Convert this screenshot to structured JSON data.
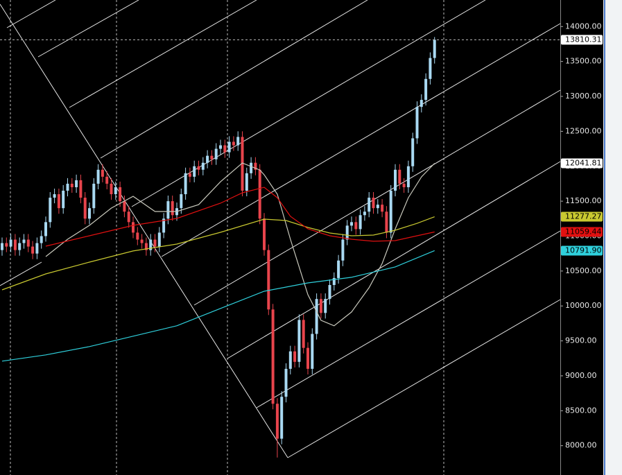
{
  "chart_data": {
    "type": "candlestick",
    "ylim": [
      7580,
      14380
    ],
    "yticks": [
      {
        "value": 8000,
        "label": "8000.00"
      },
      {
        "value": 8500,
        "label": "8500.00"
      },
      {
        "value": 9000,
        "label": "9000.00"
      },
      {
        "value": 9500,
        "label": "9500.00"
      },
      {
        "value": 10000,
        "label": "10000.00"
      },
      {
        "value": 10500,
        "label": "10500.00"
      },
      {
        "value": 11000,
        "label": "11000.00"
      },
      {
        "value": 11500,
        "label": "11500.00"
      },
      {
        "value": 12000,
        "label": "12000.00"
      },
      {
        "value": 12500,
        "label": "12500.00"
      },
      {
        "value": 13000,
        "label": "13000.00"
      },
      {
        "value": 13500,
        "label": "13500.00"
      },
      {
        "value": 14000,
        "label": "14000.00"
      }
    ],
    "up_color": "#a9d9f2",
    "down_color": "#e8444c",
    "open": [
      10800,
      10900,
      10850,
      10950,
      10800,
      10900,
      10950,
      10850,
      10750,
      10900,
      11000,
      11200,
      11550,
      11600,
      11400,
      11650,
      11750,
      11700,
      11800,
      11550,
      11250,
      11400,
      11750,
      11950,
      11850,
      11750,
      11600,
      11700,
      11500,
      11350,
      11200,
      11050,
      10950,
      10900,
      10800,
      10950,
      10850,
      11050,
      11250,
      11500,
      11300,
      11400,
      11600,
      11900,
      11850,
      12000,
      11950,
      12050,
      12150,
      12100,
      12250,
      12300,
      12200,
      12350,
      12300,
      12420,
      11650,
      11900,
      12050,
      11950,
      11250,
      10800,
      9950,
      8600,
      8100,
      8700,
      9100,
      9350,
      9200,
      9800,
      9400,
      9100,
      9600,
      10100,
      9900,
      10100,
      10300,
      10400,
      10650,
      10950,
      11150,
      11200,
      11100,
      11300,
      11350,
      11550,
      11400,
      11450,
      11350,
      11050,
      11650,
      11950,
      11750,
      11700,
      12000,
      12400,
      12850,
      12950,
      13250,
      13550
    ],
    "high": [
      10980,
      10980,
      11030,
      11030,
      10980,
      11030,
      11030,
      10930,
      10980,
      11080,
      11280,
      11630,
      11680,
      11680,
      11730,
      11830,
      11830,
      11880,
      11880,
      11630,
      11480,
      11830,
      12030,
      12030,
      11930,
      11830,
      11780,
      11780,
      11580,
      11430,
      11280,
      11130,
      11030,
      10980,
      11030,
      11030,
      11130,
      11330,
      11580,
      11580,
      11480,
      11680,
      11980,
      11980,
      12080,
      12080,
      12130,
      12230,
      12230,
      12330,
      12380,
      12380,
      12430,
      12430,
      12500,
      12500,
      11980,
      12130,
      12130,
      12030,
      11330,
      10880,
      10030,
      8680,
      8780,
      9180,
      9430,
      9430,
      9880,
      9880,
      9480,
      9680,
      10180,
      10180,
      10180,
      10380,
      10480,
      10730,
      11030,
      11230,
      11280,
      11280,
      11380,
      11430,
      11630,
      11630,
      11530,
      11530,
      11430,
      11730,
      12030,
      12030,
      11830,
      12080,
      12480,
      12930,
      13030,
      13330,
      13630,
      13850
    ],
    "low": [
      10720,
      10770,
      10770,
      10720,
      10720,
      10820,
      10770,
      10670,
      10670,
      10820,
      10920,
      11120,
      11470,
      11320,
      11320,
      11570,
      11620,
      11620,
      11470,
      11170,
      11170,
      11320,
      11670,
      11770,
      11670,
      11520,
      11520,
      11420,
      11270,
      11120,
      10970,
      10870,
      10820,
      10720,
      10720,
      10770,
      10770,
      10970,
      11170,
      11220,
      11220,
      11320,
      11520,
      11770,
      11770,
      11870,
      11870,
      11970,
      12020,
      12020,
      12170,
      12120,
      12120,
      12220,
      12220,
      11570,
      11570,
      11820,
      11870,
      11170,
      10720,
      9870,
      8520,
      7830,
      8020,
      8620,
      9020,
      9120,
      9120,
      9320,
      9020,
      9020,
      9520,
      9820,
      9820,
      10020,
      10220,
      10320,
      10570,
      10870,
      11070,
      11020,
      11020,
      11220,
      11270,
      11320,
      11320,
      11270,
      10970,
      10970,
      11570,
      11670,
      11620,
      11620,
      11920,
      12320,
      12770,
      12870,
      13170,
      13470
    ],
    "close": [
      10900,
      10850,
      10950,
      10800,
      10900,
      10950,
      10850,
      10750,
      10900,
      11000,
      11200,
      11550,
      11600,
      11400,
      11650,
      11750,
      11700,
      11800,
      11550,
      11250,
      11400,
      11750,
      11950,
      11850,
      11750,
      11600,
      11700,
      11500,
      11350,
      11200,
      11050,
      10950,
      10900,
      10800,
      10950,
      10850,
      11050,
      11250,
      11500,
      11300,
      11400,
      11600,
      11900,
      11850,
      12000,
      11950,
      12050,
      12150,
      12100,
      12250,
      12300,
      12200,
      12350,
      12300,
      12420,
      11650,
      11900,
      12050,
      11950,
      11250,
      10800,
      9950,
      8600,
      8100,
      8700,
      9100,
      9350,
      9200,
      9800,
      9400,
      9100,
      9600,
      10100,
      9900,
      10100,
      10300,
      10400,
      10650,
      10950,
      11150,
      11200,
      11100,
      11300,
      11350,
      11550,
      11400,
      11450,
      11350,
      11050,
      11650,
      11950,
      11750,
      11700,
      12000,
      12400,
      12850,
      12950,
      13250,
      13550,
      13810.31
    ],
    "series": [
      {
        "color": "#c9c9bd",
        "x": [
          10,
          15,
          20,
          25,
          30,
          35,
          40,
          45,
          50,
          55,
          59,
          60,
          63,
          66,
          70,
          73,
          76,
          80,
          84,
          87,
          90,
          93,
          96,
          99
        ],
        "values": [
          10707,
          10955,
          11154,
          11401,
          11570,
          11352,
          11352,
          11451,
          11778,
          12046,
          11947,
          11877,
          11600,
          10955,
          10162,
          9795,
          9716,
          9914,
          10261,
          10608,
          11104,
          11550,
          11848,
          12041.81
        ]
      },
      {
        "color": "#c8c830",
        "x": [
          0,
          10,
          20,
          30,
          40,
          50,
          60,
          65,
          70,
          75,
          80,
          85,
          90,
          95,
          99
        ],
        "values": [
          10231,
          10459,
          10628,
          10787,
          10886,
          11054,
          11243,
          11223,
          11124,
          11045,
          11005,
          11015,
          11084,
          11183,
          11277.27
        ]
      },
      {
        "color": "#e01010",
        "x": [
          10,
          20,
          30,
          40,
          50,
          55,
          60,
          63,
          66,
          70,
          75,
          80,
          85,
          90,
          95,
          99
        ],
        "values": [
          10856,
          11005,
          11154,
          11253,
          11471,
          11620,
          11699,
          11550,
          11283,
          11104,
          11005,
          10955,
          10926,
          10935,
          11005,
          11059.44
        ]
      },
      {
        "color": "#2fd0dc",
        "x": [
          0,
          10,
          20,
          30,
          40,
          50,
          60,
          70,
          80,
          90,
          99
        ],
        "values": [
          9210,
          9299,
          9418,
          9567,
          9716,
          9964,
          10211,
          10330,
          10410,
          10559,
          10791.9
        ],
        "value_labels": [
          null,
          null,
          null,
          null,
          null,
          null,
          null,
          null,
          null,
          null,
          "10791.90"
        ]
      }
    ]
  }
}
